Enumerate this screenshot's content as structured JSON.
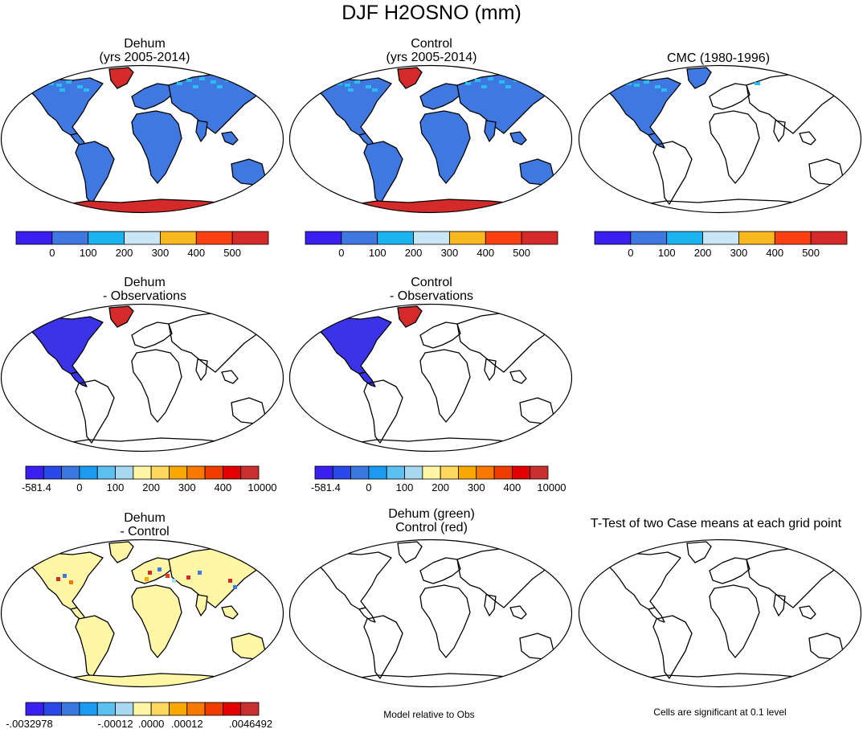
{
  "title": "DJF H2OSNO (mm)",
  "colors": {
    "frame": "#000000",
    "land_outline": "#000000",
    "blue_land": "#3e78e0",
    "cyan": "#2bbcf2",
    "deep_blue": "#3a33e8",
    "red": "#d42a2a",
    "pale_yellow": "#fff6a6",
    "lightblue": "#a8d8f0"
  },
  "panels": [
    {
      "id": "dehum",
      "title1": "Dehum",
      "title2": "(yrs 2005-2014)",
      "fill": "blue_all",
      "antarctica": "red",
      "greenland": "red"
    },
    {
      "id": "control",
      "title1": "Control",
      "title2": "(yrs 2005-2014)",
      "fill": "blue_all",
      "antarctica": "red",
      "greenland": "red"
    },
    {
      "id": "cmc",
      "title1": "CMC (1980-1996)",
      "title2": "",
      "fill": "na_only",
      "antarctica": "none",
      "greenland": "blue"
    },
    {
      "id": "dehum-obs",
      "title1": "Dehum",
      "title2": "- Observations",
      "fill": "na_deep",
      "antarctica": "none",
      "greenland": "red"
    },
    {
      "id": "control-obs",
      "title1": "Control",
      "title2": "- Observations",
      "fill": "na_deep",
      "antarctica": "none",
      "greenland": "red"
    },
    {
      "id": "dehum-control",
      "title1": "Dehum",
      "title2": "- Control",
      "fill": "yellow_all",
      "antarctica": "yellow",
      "greenland": "yellow"
    },
    {
      "id": "dehum-green",
      "title1": "Dehum (green)",
      "title2": "Control (red)",
      "fill": "none",
      "antarctica": "none",
      "greenland": "none"
    },
    {
      "id": "ttest",
      "title1": "T-Test of two Case means at each grid point",
      "title2": "",
      "fill": "none",
      "antarctica": "none",
      "greenland": "none"
    }
  ],
  "colorbars": {
    "abs": {
      "colors": [
        "#3a1ff0",
        "#3e78e0",
        "#1cb4f0",
        "#c8e6f4",
        "#f8b820",
        "#ff4010",
        "#d42a2a"
      ],
      "labels": [
        "0",
        "100",
        "200",
        "300",
        "400",
        "500"
      ]
    },
    "diff": {
      "colors": [
        "#3a1ff0",
        "#2848e8",
        "#3a78e0",
        "#1a9af0",
        "#5cc0f0",
        "#a8d8f0",
        "#fff6a6",
        "#ffd860",
        "#f8a800",
        "#f87800",
        "#f03c00",
        "#e00000",
        "#c83030"
      ],
      "labels": [
        "-581.4",
        "0",
        "100",
        "200",
        "300",
        "400",
        "10000"
      ]
    },
    "dd": {
      "colors": [
        "#3a1ff0",
        "#2848e8",
        "#3a78e0",
        "#1a9af0",
        "#5cc0f0",
        "#a8d8f0",
        "#fff6a6",
        "#ffd860",
        "#f8a800",
        "#f87800",
        "#f03c00",
        "#e00000",
        "#c83030"
      ],
      "labels": [
        "-.0032978",
        "-.00012",
        ".0000",
        ".00012",
        ".0046492"
      ]
    }
  },
  "notes": {
    "model_relative": "Model relative to Obs",
    "significant": "Cells are significant at 0.1 level"
  }
}
